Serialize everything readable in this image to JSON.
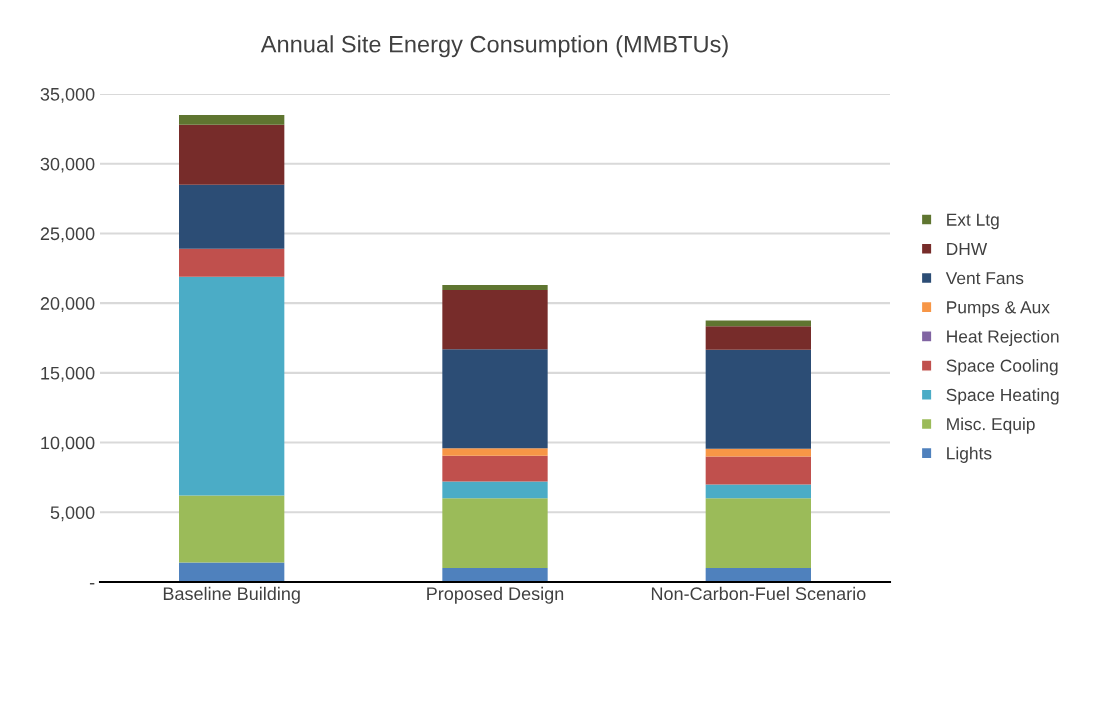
{
  "chart_data": {
    "type": "bar",
    "title": "Annual Site Energy Consumption (MMBTUs)",
    "stacked": true,
    "categories": [
      "Baseline Building",
      "Proposed Design",
      "Non-Carbon-Fuel Scenario"
    ],
    "series": [
      {
        "name": "Lights",
        "color": "#4f81bd",
        "values": [
          1400,
          1000,
          1000
        ]
      },
      {
        "name": "Misc. Equip",
        "color": "#9bbb59",
        "values": [
          4800,
          5000,
          5000
        ]
      },
      {
        "name": "Space Heating",
        "color": "#4bacc6",
        "values": [
          15700,
          1200,
          1000
        ]
      },
      {
        "name": "Space Cooling",
        "color": "#c0504d",
        "values": [
          2000,
          1850,
          2000
        ]
      },
      {
        "name": "Heat Rejection",
        "color": "#8064a2",
        "values": [
          0,
          0,
          0
        ]
      },
      {
        "name": "Pumps & Aux",
        "color": "#f79646",
        "values": [
          0,
          550,
          550
        ]
      },
      {
        "name": "Vent Fans",
        "color": "#2c4d75",
        "values": [
          4600,
          7100,
          7100
        ]
      },
      {
        "name": "DHW",
        "color": "#772c2a",
        "values": [
          4300,
          4250,
          1700
        ]
      },
      {
        "name": "Ext Ltg",
        "color": "#5f7530",
        "values": [
          700,
          350,
          400
        ]
      }
    ],
    "ylim": [
      0,
      35000
    ],
    "yticks": [
      {
        "value": 0,
        "label": "-"
      },
      {
        "value": 5000,
        "label": "5,000"
      },
      {
        "value": 10000,
        "label": "10,000"
      },
      {
        "value": 15000,
        "label": "15,000"
      },
      {
        "value": 20000,
        "label": "20,000"
      },
      {
        "value": 25000,
        "label": "25,000"
      },
      {
        "value": 30000,
        "label": "30,000"
      },
      {
        "value": 35000,
        "label": "35,000"
      }
    ],
    "grid": "y",
    "legend": "right"
  }
}
